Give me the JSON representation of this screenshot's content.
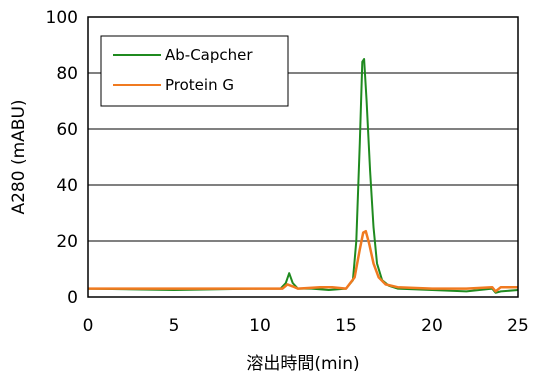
{
  "chart_data": {
    "type": "line",
    "title": "",
    "xlabel": "溶出時間(min)",
    "ylabel": "A280 (mABU)",
    "xlim": [
      0,
      25
    ],
    "ylim": [
      0,
      100
    ],
    "xticks": [
      "0",
      "5",
      "10",
      "15",
      "20",
      "25"
    ],
    "yticks": [
      "0",
      "20",
      "40",
      "60",
      "80",
      "100"
    ],
    "grid": "horizontal",
    "legend": "top-left",
    "series": [
      {
        "name": "Ab-Capcher",
        "color": "#1f8a1f",
        "x": [
          0,
          5,
          10,
          11.2,
          11.5,
          11.7,
          11.9,
          12.2,
          13,
          14,
          15,
          15.4,
          15.6,
          15.8,
          15.95,
          16.05,
          16.2,
          16.4,
          16.6,
          16.8,
          17.1,
          17.5,
          18,
          20,
          22,
          23.5,
          23.7,
          24,
          25
        ],
        "y": [
          3,
          2.5,
          3,
          3,
          5,
          8.5,
          5,
          3,
          3,
          2.5,
          3,
          6,
          20,
          55,
          84,
          85,
          70,
          45,
          25,
          12,
          6,
          4,
          3,
          2.5,
          2,
          3,
          1.5,
          2,
          2.5
        ]
      },
      {
        "name": "Protein G",
        "color": "#f07a20",
        "x": [
          0,
          5,
          10,
          11.3,
          11.6,
          11.9,
          12.2,
          13.5,
          14.2,
          15,
          15.5,
          15.8,
          16.0,
          16.15,
          16.35,
          16.6,
          16.9,
          17.3,
          18,
          20,
          22,
          23.5,
          23.7,
          24,
          25
        ],
        "y": [
          3,
          3,
          3,
          3,
          4.5,
          3.8,
          3,
          3.5,
          3.5,
          3,
          7,
          17,
          23,
          23.5,
          19,
          12,
          7,
          4.5,
          3.5,
          3,
          3,
          3.5,
          2,
          3.5,
          3.5
        ]
      }
    ]
  }
}
